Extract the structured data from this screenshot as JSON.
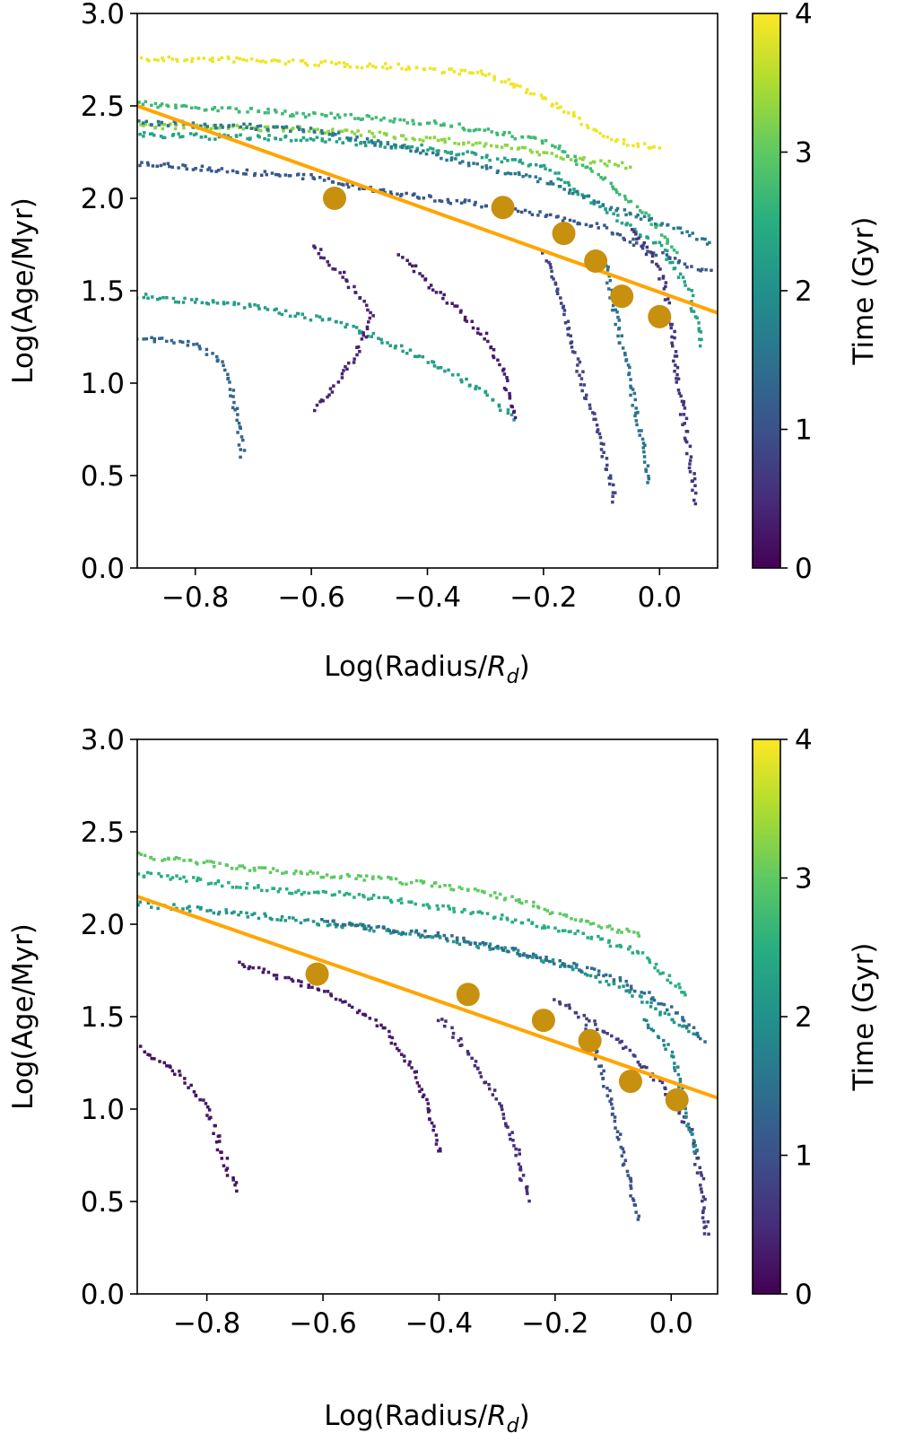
{
  "chart_data": [
    {
      "type": "scatter",
      "xlabel": "Log(Radius/",
      "xlabel_sub": "R",
      "xlabel_sub_index": "d",
      "xlabel_close": ")",
      "ylabel": "Log(Age/Myr)",
      "xlim": [
        -0.9,
        0.1
      ],
      "ylim": [
        0.0,
        3.0
      ],
      "xticks": [
        -0.8,
        -0.6,
        -0.4,
        -0.2,
        0.0
      ],
      "xtick_labels": [
        "−0.8",
        "−0.6",
        "−0.4",
        "−0.2",
        "0.0"
      ],
      "yticks": [
        0.0,
        0.5,
        1.0,
        1.5,
        2.0,
        2.5,
        3.0
      ],
      "ytick_labels": [
        "0.0",
        "0.5",
        "1.0",
        "1.5",
        "2.0",
        "2.5",
        "3.0"
      ],
      "colorbar": {
        "label": "Time (Gyr)",
        "range": [
          0,
          4
        ],
        "ticks": [
          0,
          1,
          2,
          3,
          4
        ],
        "tick_labels": [
          "0",
          "1",
          "2",
          "3",
          "4"
        ],
        "colormap": "viridis"
      },
      "fit_line": {
        "color": "#ffa500",
        "points": [
          [
            -0.9,
            2.5
          ],
          [
            0.1,
            1.38
          ]
        ]
      },
      "binned_points": {
        "color": "#c8900f",
        "x": [
          -0.56,
          -0.27,
          -0.165,
          -0.11,
          -0.065,
          0.0
        ],
        "y": [
          2.0,
          1.95,
          1.81,
          1.66,
          1.47,
          1.36
        ]
      },
      "tracks": [
        {
          "time": 3.9,
          "points": [
            [
              -0.9,
              2.76
            ],
            [
              -0.75,
              2.76
            ],
            [
              -0.6,
              2.74
            ],
            [
              -0.45,
              2.72
            ],
            [
              -0.3,
              2.68
            ],
            [
              -0.2,
              2.55
            ],
            [
              -0.15,
              2.45
            ],
            [
              -0.1,
              2.35
            ],
            [
              -0.05,
              2.3
            ],
            [
              0.0,
              2.28
            ]
          ]
        },
        {
          "time": 3.3,
          "points": [
            [
              -0.9,
              2.4
            ],
            [
              -0.6,
              2.38
            ],
            [
              -0.4,
              2.33
            ],
            [
              -0.25,
              2.28
            ],
            [
              -0.15,
              2.22
            ],
            [
              -0.05,
              2.18
            ]
          ]
        },
        {
          "time": 2.7,
          "points": [
            [
              -0.9,
              2.52
            ],
            [
              -0.6,
              2.46
            ],
            [
              -0.4,
              2.42
            ],
            [
              -0.2,
              2.32
            ],
            [
              -0.1,
              2.12
            ],
            [
              -0.02,
              1.9
            ],
            [
              0.03,
              1.7
            ]
          ]
        },
        {
          "time": 2.3,
          "points": [
            [
              -0.9,
              2.35
            ],
            [
              -0.6,
              2.33
            ],
            [
              -0.4,
              2.28
            ],
            [
              -0.2,
              2.18
            ],
            [
              -0.1,
              1.95
            ],
            [
              0.0,
              1.75
            ],
            [
              0.05,
              1.5
            ],
            [
              0.07,
              1.2
            ]
          ]
        },
        {
          "time": 1.6,
          "points": [
            [
              -0.9,
              2.42
            ],
            [
              -0.6,
              2.38
            ],
            [
              -0.4,
              2.25
            ],
            [
              -0.2,
              2.1
            ],
            [
              -0.05,
              1.92
            ],
            [
              0.05,
              1.82
            ],
            [
              0.09,
              1.75
            ]
          ]
        },
        {
          "time": 1.1,
          "points": [
            [
              -0.9,
              2.2
            ],
            [
              -0.6,
              2.12
            ],
            [
              -0.45,
              2.03
            ],
            [
              -0.25,
              1.95
            ],
            [
              -0.1,
              1.85
            ],
            [
              0.0,
              1.7
            ],
            [
              0.09,
              1.6
            ]
          ]
        },
        {
          "time": 2.2,
          "points": [
            [
              -0.9,
              1.48
            ],
            [
              -0.7,
              1.42
            ],
            [
              -0.55,
              1.33
            ],
            [
              -0.45,
              1.2
            ],
            [
              -0.37,
              1.08
            ],
            [
              -0.3,
              0.95
            ],
            [
              -0.25,
              0.8
            ]
          ]
        },
        {
          "time": 1.3,
          "points": [
            [
              -0.9,
              1.25
            ],
            [
              -0.8,
              1.22
            ],
            [
              -0.75,
              1.1
            ],
            [
              -0.74,
              0.95
            ],
            [
              -0.73,
              0.85
            ],
            [
              -0.72,
              0.6
            ]
          ]
        },
        {
          "time": 0.4,
          "points": [
            [
              -0.6,
              1.75
            ],
            [
              -0.55,
              1.6
            ],
            [
              -0.5,
              1.38
            ],
            [
              -0.52,
              1.2
            ],
            [
              -0.55,
              1.05
            ],
            [
              -0.6,
              0.85
            ]
          ]
        },
        {
          "time": 0.3,
          "points": [
            [
              -0.45,
              1.7
            ],
            [
              -0.4,
              1.55
            ],
            [
              -0.35,
              1.4
            ],
            [
              -0.3,
              1.25
            ],
            [
              -0.27,
              1.05
            ],
            [
              -0.25,
              0.8
            ]
          ]
        },
        {
          "time": 0.8,
          "points": [
            [
              -0.2,
              1.7
            ],
            [
              -0.17,
              1.45
            ],
            [
              -0.15,
              1.2
            ],
            [
              -0.13,
              0.95
            ],
            [
              -0.1,
              0.65
            ],
            [
              -0.08,
              0.35
            ]
          ]
        },
        {
          "time": 1.5,
          "points": [
            [
              -0.1,
              1.7
            ],
            [
              -0.08,
              1.4
            ],
            [
              -0.06,
              1.1
            ],
            [
              -0.04,
              0.8
            ],
            [
              -0.02,
              0.45
            ]
          ]
        },
        {
          "time": 0.6,
          "points": [
            [
              -0.05,
              1.85
            ],
            [
              0.0,
              1.6
            ],
            [
              0.02,
              1.3
            ],
            [
              0.03,
              1.0
            ],
            [
              0.05,
              0.6
            ],
            [
              0.06,
              0.35
            ]
          ]
        }
      ]
    },
    {
      "type": "scatter",
      "xlabel": "Log(Radius/",
      "xlabel_sub": "R",
      "xlabel_sub_index": "d",
      "xlabel_close": ")",
      "ylabel": "Log(Age/Myr)",
      "xlim": [
        -0.92,
        0.08
      ],
      "ylim": [
        0.0,
        3.0
      ],
      "xticks": [
        -0.8,
        -0.6,
        -0.4,
        -0.2,
        0.0
      ],
      "xtick_labels": [
        "−0.8",
        "−0.6",
        "−0.4",
        "−0.2",
        "0.0"
      ],
      "yticks": [
        0.0,
        0.5,
        1.0,
        1.5,
        2.0,
        2.5,
        3.0
      ],
      "ytick_labels": [
        "0.0",
        "0.5",
        "1.0",
        "1.5",
        "2.0",
        "2.5",
        "3.0"
      ],
      "colorbar": {
        "label": "Time (Gyr)",
        "range": [
          0,
          4
        ],
        "ticks": [
          0,
          1,
          2,
          3,
          4
        ],
        "tick_labels": [
          "0",
          "1",
          "2",
          "3",
          "4"
        ],
        "colormap": "viridis"
      },
      "fit_line": {
        "color": "#ffa500",
        "points": [
          [
            -0.92,
            2.15
          ],
          [
            0.08,
            1.06
          ]
        ]
      },
      "binned_points": {
        "color": "#c8900f",
        "x": [
          -0.61,
          -0.35,
          -0.22,
          -0.14,
          -0.07,
          0.01
        ],
        "y": [
          1.73,
          1.62,
          1.48,
          1.37,
          1.15,
          1.05
        ]
      },
      "tracks": [
        {
          "time": 3.0,
          "points": [
            [
              -0.92,
              2.38
            ],
            [
              -0.7,
              2.3
            ],
            [
              -0.5,
              2.25
            ],
            [
              -0.35,
              2.2
            ],
            [
              -0.25,
              2.12
            ],
            [
              -0.15,
              2.02
            ],
            [
              -0.05,
              1.95
            ]
          ]
        },
        {
          "time": 2.5,
          "points": [
            [
              -0.92,
              2.28
            ],
            [
              -0.7,
              2.2
            ],
            [
              -0.5,
              2.15
            ],
            [
              -0.3,
              2.05
            ],
            [
              -0.15,
              1.95
            ],
            [
              -0.05,
              1.85
            ],
            [
              0.03,
              1.6
            ]
          ]
        },
        {
          "time": 2.1,
          "points": [
            [
              -0.92,
              2.12
            ],
            [
              -0.7,
              2.05
            ],
            [
              -0.5,
              1.98
            ],
            [
              -0.3,
              1.88
            ],
            [
              -0.15,
              1.75
            ],
            [
              -0.05,
              1.6
            ],
            [
              0.04,
              1.4
            ]
          ]
        },
        {
          "time": 1.4,
          "points": [
            [
              -0.6,
              2.02
            ],
            [
              -0.4,
              1.95
            ],
            [
              -0.25,
              1.85
            ],
            [
              -0.1,
              1.72
            ],
            [
              0.0,
              1.55
            ],
            [
              0.06,
              1.35
            ]
          ]
        },
        {
          "time": 0.7,
          "points": [
            [
              -0.2,
              1.6
            ],
            [
              -0.1,
              1.4
            ],
            [
              -0.02,
              1.15
            ],
            [
              0.03,
              0.9
            ],
            [
              0.05,
              0.6
            ],
            [
              0.06,
              0.3
            ]
          ]
        },
        {
          "time": 0.3,
          "points": [
            [
              -0.75,
              1.8
            ],
            [
              -0.6,
              1.65
            ],
            [
              -0.5,
              1.45
            ],
            [
              -0.45,
              1.25
            ],
            [
              -0.42,
              1.0
            ],
            [
              -0.4,
              0.75
            ]
          ]
        },
        {
          "time": 0.2,
          "points": [
            [
              -0.92,
              1.35
            ],
            [
              -0.85,
              1.2
            ],
            [
              -0.8,
              1.0
            ],
            [
              -0.78,
              0.8
            ],
            [
              -0.75,
              0.55
            ]
          ]
        },
        {
          "time": 0.5,
          "points": [
            [
              -0.4,
              1.5
            ],
            [
              -0.35,
              1.3
            ],
            [
              -0.3,
              1.05
            ],
            [
              -0.27,
              0.8
            ],
            [
              -0.25,
              0.5
            ]
          ]
        },
        {
          "time": 1.0,
          "points": [
            [
              -0.15,
              1.45
            ],
            [
              -0.12,
              1.2
            ],
            [
              -0.1,
              0.95
            ],
            [
              -0.08,
              0.7
            ],
            [
              -0.06,
              0.4
            ]
          ]
        },
        {
          "time": 1.8,
          "points": [
            [
              -0.05,
              1.5
            ],
            [
              0.0,
              1.3
            ],
            [
              0.02,
              1.05
            ],
            [
              0.04,
              0.75
            ]
          ]
        }
      ]
    }
  ]
}
